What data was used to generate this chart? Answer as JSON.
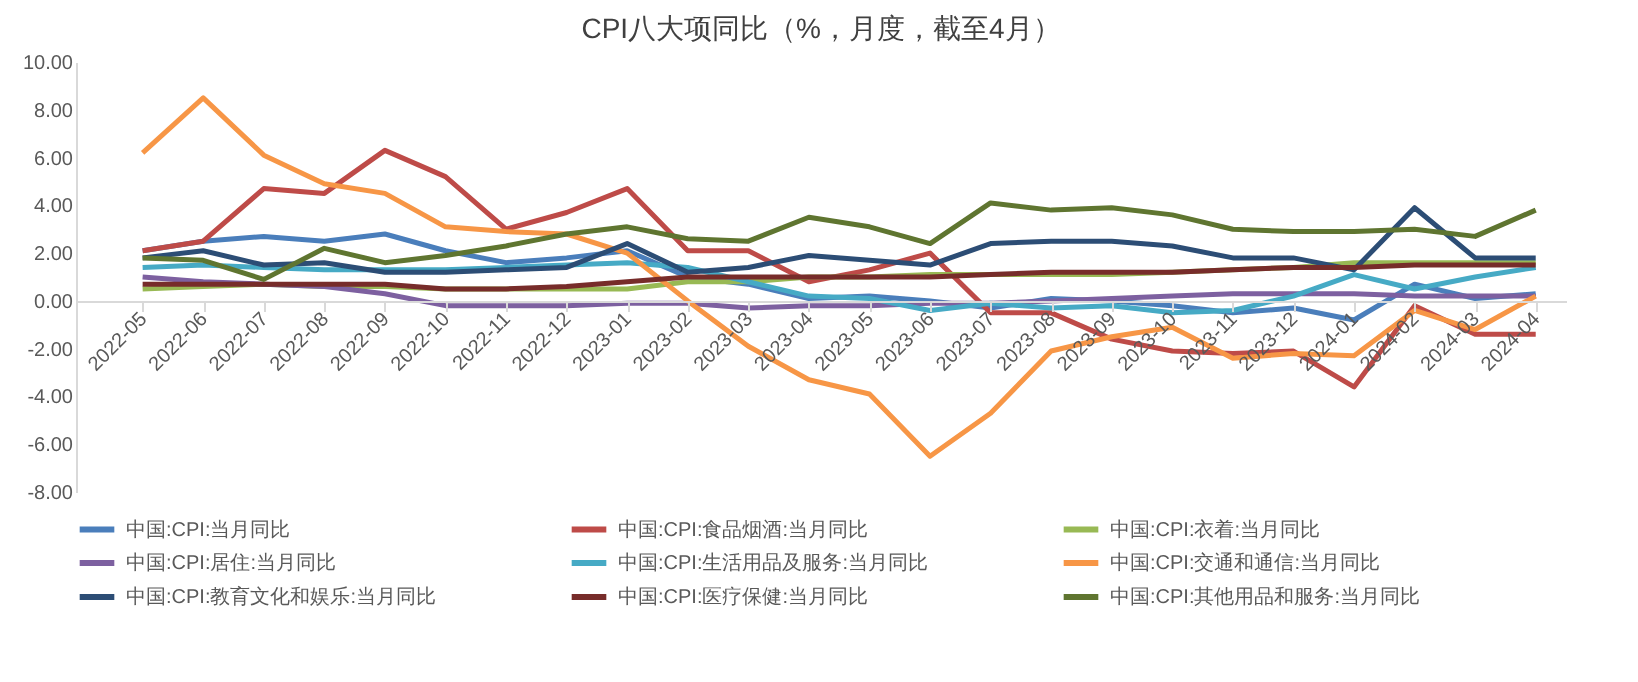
{
  "chart_data": {
    "type": "line",
    "title": "CPI八大项同比（%，月度，截至4月）",
    "categories": [
      "2022-05",
      "2022-06",
      "2022-07",
      "2022-08",
      "2022-09",
      "2022-10",
      "2022-11",
      "2022-12",
      "2023-01",
      "2023-02",
      "2023-03",
      "2023-04",
      "2023-05",
      "2023-06",
      "2023-07",
      "2023-08",
      "2023-09",
      "2023-10",
      "2023-11",
      "2023-12",
      "2024-01",
      "2024-02",
      "2024-03",
      "2024-04"
    ],
    "ylim": [
      -8,
      10
    ],
    "yticks": [
      {
        "value": -8,
        "label": "-8.00"
      },
      {
        "value": -6,
        "label": "-6.00"
      },
      {
        "value": -4,
        "label": "-4.00"
      },
      {
        "value": -2,
        "label": "-2.00"
      },
      {
        "value": 0,
        "label": "0.00"
      },
      {
        "value": 2,
        "label": "2.00"
      },
      {
        "value": 4,
        "label": "4.00"
      },
      {
        "value": 6,
        "label": "6.00"
      },
      {
        "value": 8,
        "label": "8.00"
      },
      {
        "value": 10,
        "label": "10.00"
      }
    ],
    "grid": false,
    "legend": "bottom",
    "marker": "none",
    "line_style": "solid",
    "series": [
      {
        "name": "中国:CPI:当月同比",
        "color": "#4a7ebb",
        "values": [
          2.1,
          2.5,
          2.7,
          2.5,
          2.8,
          2.1,
          1.6,
          1.8,
          2.1,
          1.0,
          0.7,
          0.1,
          0.2,
          0.0,
          -0.3,
          0.1,
          0.0,
          -0.2,
          -0.5,
          -0.3,
          -0.8,
          0.7,
          0.1,
          0.3
        ]
      },
      {
        "name": "中国:CPI:食品烟酒:当月同比",
        "color": "#be4b48",
        "values": [
          2.1,
          2.5,
          4.7,
          4.5,
          6.3,
          5.2,
          3.0,
          3.7,
          4.7,
          2.1,
          2.1,
          0.8,
          1.3,
          2.0,
          -0.5,
          -0.5,
          -1.6,
          -2.1,
          -2.2,
          -2.1,
          -3.6,
          -0.2,
          -1.4,
          -1.4
        ]
      },
      {
        "name": "中国:CPI:衣着:当月同比",
        "color": "#98b954",
        "values": [
          0.5,
          0.6,
          0.7,
          0.6,
          0.6,
          0.5,
          0.5,
          0.5,
          0.5,
          0.8,
          0.8,
          1.0,
          1.0,
          1.1,
          1.1,
          1.1,
          1.1,
          1.2,
          1.3,
          1.4,
          1.6,
          1.6,
          1.6,
          1.6
        ]
      },
      {
        "name": "中国:CPI:居住:当月同比",
        "color": "#7d60a0",
        "values": [
          1.0,
          0.8,
          0.7,
          0.6,
          0.3,
          -0.2,
          -0.2,
          -0.2,
          -0.1,
          -0.1,
          -0.3,
          -0.2,
          -0.2,
          -0.1,
          -0.1,
          0.0,
          0.1,
          0.2,
          0.3,
          0.3,
          0.3,
          0.2,
          0.2,
          0.2
        ]
      },
      {
        "name": "中国:CPI:生活用品及服务:当月同比",
        "color": "#46aac5",
        "values": [
          1.4,
          1.5,
          1.4,
          1.3,
          1.3,
          1.3,
          1.4,
          1.5,
          1.6,
          1.4,
          0.8,
          0.2,
          0.1,
          -0.4,
          -0.1,
          -0.3,
          -0.2,
          -0.5,
          -0.4,
          0.2,
          1.1,
          0.5,
          1.0,
          1.4
        ]
      },
      {
        "name": "中国:CPI:交通和通信:当月同比",
        "color": "#f79646",
        "values": [
          6.2,
          8.5,
          6.1,
          4.9,
          4.5,
          3.1,
          2.9,
          2.8,
          2.0,
          0.0,
          -1.9,
          -3.3,
          -3.9,
          -6.5,
          -4.7,
          -2.1,
          -1.5,
          -1.1,
          -2.4,
          -2.2,
          -2.3,
          -0.4,
          -1.2,
          0.2
        ]
      },
      {
        "name": "中国:CPI:教育文化和娱乐:当月同比",
        "color": "#2c4d75",
        "values": [
          1.8,
          2.1,
          1.5,
          1.6,
          1.2,
          1.2,
          1.3,
          1.4,
          2.4,
          1.2,
          1.4,
          1.9,
          1.7,
          1.5,
          2.4,
          2.5,
          2.5,
          2.3,
          1.8,
          1.8,
          1.3,
          3.9,
          1.8,
          1.8
        ]
      },
      {
        "name": "中国:CPI:医疗保健:当月同比",
        "color": "#772c2a",
        "values": [
          0.7,
          0.7,
          0.7,
          0.7,
          0.7,
          0.5,
          0.5,
          0.6,
          0.8,
          1.0,
          1.0,
          1.0,
          1.0,
          1.0,
          1.1,
          1.2,
          1.2,
          1.2,
          1.3,
          1.4,
          1.4,
          1.5,
          1.5,
          1.5
        ]
      },
      {
        "name": "中国:CPI:其他用品和服务:当月同比",
        "color": "#5f7530",
        "values": [
          1.8,
          1.7,
          0.9,
          2.2,
          1.6,
          1.9,
          2.3,
          2.8,
          3.1,
          2.6,
          2.5,
          3.5,
          3.1,
          2.4,
          4.1,
          3.8,
          3.9,
          3.6,
          3.0,
          2.9,
          2.9,
          3.0,
          2.7,
          3.8
        ]
      }
    ]
  }
}
